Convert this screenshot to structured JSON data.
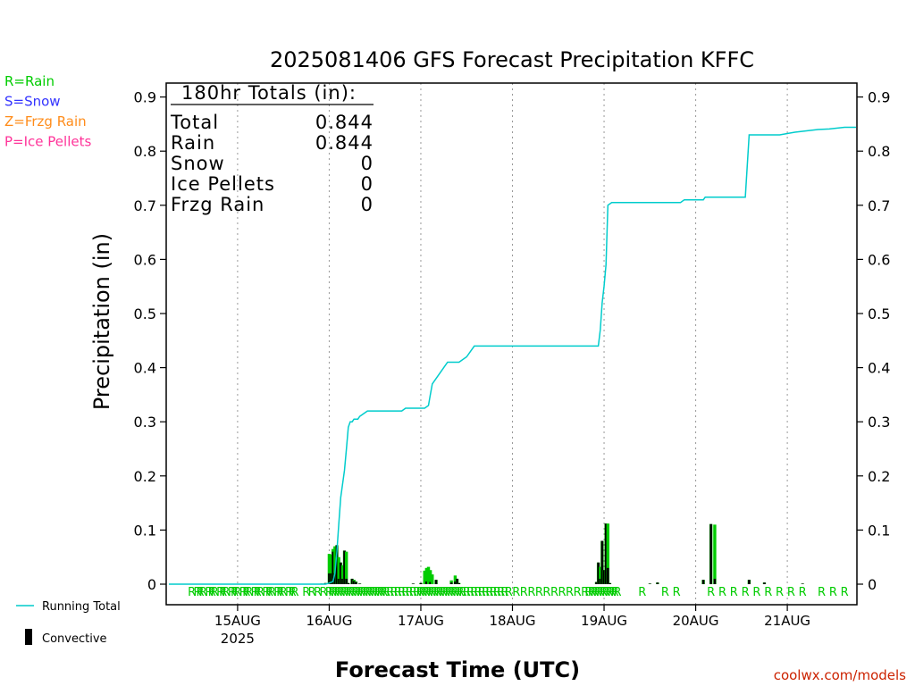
{
  "chart_data": {
    "type": "bar+line",
    "title": "2025081406 GFS Forecast Precipitation KFFC",
    "xlabel": "Forecast Time (UTC)",
    "ylabel": "Precipitation (in)",
    "ylim": [
      0,
      0.9
    ],
    "y_ticks": [
      "0",
      "0.1",
      "0.2",
      "0.3",
      "0.4",
      "0.5",
      "0.6",
      "0.7",
      "0.8",
      "0.9"
    ],
    "x_ticks": [
      {
        "hour": 18,
        "label": "15AUG",
        "sublabel": "2025"
      },
      {
        "hour": 42,
        "label": "16AUG"
      },
      {
        "hour": 66,
        "label": "17AUG"
      },
      {
        "hour": 90,
        "label": "18AUG"
      },
      {
        "hour": 114,
        "label": "19AUG"
      },
      {
        "hour": 138,
        "label": "20AUG"
      },
      {
        "hour": 162,
        "label": "21AUG"
      }
    ],
    "x_hour_range": [
      0,
      180
    ],
    "grid_x": true,
    "legend_left": [
      {
        "text": "R=Rain",
        "color": "#00cc00"
      },
      {
        "text": "S=Snow",
        "color": "#3333ff"
      },
      {
        "text": "Z=Frzg Rain",
        "color": "#ff8c1a"
      },
      {
        "text": "P=Ice Pellets",
        "color": "#ff3399"
      }
    ],
    "legend_bottom": [
      {
        "text": "Running Total",
        "color": "#00cccc",
        "kind": "line"
      },
      {
        "text": "Convective",
        "color": "#000000",
        "kind": "bar"
      }
    ],
    "totals": {
      "header": "180hr Totals (in):",
      "rows": [
        {
          "label": "Total",
          "value": "0.844"
        },
        {
          "label": "Rain",
          "value": "0.844"
        },
        {
          "label": "Snow",
          "value": "0"
        },
        {
          "label": "Ice Pellets",
          "value": "0"
        },
        {
          "label": "Frzg Rain",
          "value": "0"
        }
      ]
    },
    "running_total": {
      "color": "#00cccc",
      "hours": [
        0,
        41,
        42,
        43,
        43.5,
        44,
        44.5,
        45,
        46,
        46.5,
        47,
        47.5,
        48,
        48.5,
        49.5,
        50,
        51,
        52,
        53,
        58,
        61,
        62,
        64,
        66,
        67,
        68,
        68.5,
        69,
        70,
        72,
        73,
        74,
        74.5,
        76,
        78,
        80,
        90,
        106,
        112,
        112.5,
        113,
        113.5,
        114,
        114.5,
        115,
        116,
        122,
        134,
        135,
        138,
        140,
        140.5,
        141,
        142,
        151,
        152,
        153,
        154,
        160,
        164,
        170,
        173,
        177,
        180
      ],
      "values": [
        0,
        0,
        0.002,
        0.005,
        0.02,
        0.06,
        0.11,
        0.16,
        0.21,
        0.25,
        0.29,
        0.3,
        0.3,
        0.305,
        0.305,
        0.31,
        0.315,
        0.32,
        0.32,
        0.32,
        0.32,
        0.325,
        0.325,
        0.325,
        0.325,
        0.33,
        0.35,
        0.37,
        0.38,
        0.4,
        0.41,
        0.41,
        0.41,
        0.41,
        0.42,
        0.44,
        0.44,
        0.44,
        0.44,
        0.44,
        0.47,
        0.52,
        0.55,
        0.59,
        0.7,
        0.705,
        0.705,
        0.705,
        0.71,
        0.71,
        0.71,
        0.715,
        0.715,
        0.715,
        0.715,
        0.83,
        0.83,
        0.83,
        0.83,
        0.835,
        0.84,
        0.841,
        0.844,
        0.844
      ]
    },
    "bars": {
      "hours": [
        40,
        41,
        42,
        42.5,
        43,
        43.5,
        44,
        44.5,
        45,
        45.5,
        46,
        46.5,
        47,
        48,
        48.5,
        49,
        50,
        64,
        66,
        67,
        67.5,
        68,
        68.5,
        69,
        70,
        74,
        75,
        75.5,
        76,
        112,
        112.5,
        113,
        113.5,
        114,
        114.5,
        115,
        115.5,
        126,
        128,
        140,
        142,
        143,
        152,
        156,
        166
      ],
      "values": [
        0.001,
        0.002,
        0.056,
        0.055,
        0.065,
        0.07,
        0.072,
        0.05,
        0.04,
        0.035,
        0.062,
        0.06,
        0.002,
        0.01,
        0.008,
        0.005,
        0.001,
        0.001,
        0.002,
        0.025,
        0.03,
        0.032,
        0.026,
        0.018,
        0.008,
        0.007,
        0.016,
        0.01,
        0.002,
        0.004,
        0.04,
        0.032,
        0.08,
        0.026,
        0.112,
        0.112,
        0.002,
        0.001,
        0.003,
        0.008,
        0.111,
        0.11,
        0.008,
        0.003,
        0.001
      ],
      "convective": [
        0.001,
        0.002,
        0.02,
        0.02,
        0.06,
        0.02,
        0.072,
        0.01,
        0.04,
        0.01,
        0.062,
        0.01,
        0.002,
        0.01,
        0.006,
        0.004,
        0.001,
        0.001,
        0.002,
        0,
        0.005,
        0,
        0.004,
        0,
        0.008,
        0.003,
        0.005,
        0.01,
        0.002,
        0.004,
        0.04,
        0.01,
        0.08,
        0.026,
        0.112,
        0.03,
        0.002,
        0.001,
        0.003,
        0.008,
        0.111,
        0.01,
        0.008,
        0.003,
        0.001
      ]
    },
    "ptype_markers": {
      "letter": "R",
      "color": "#00cc00",
      "hours": [
        6,
        7.5,
        9,
        10.5,
        12,
        13.5,
        15,
        16.5,
        18,
        19.5,
        21,
        22.5,
        24,
        25.5,
        27,
        28.5,
        30,
        31.5,
        33,
        37.5,
        40.5,
        43.5,
        45,
        46.5,
        48,
        49.5,
        51,
        52.5,
        54,
        55.5,
        57,
        59,
        61,
        63,
        65,
        66.5,
        68,
        69.5,
        71,
        72.5,
        74,
        75.5,
        77,
        79,
        81,
        83,
        85,
        87,
        89,
        91,
        93,
        95,
        97,
        99,
        101,
        103,
        105,
        107,
        110,
        111.5,
        113,
        114.5,
        116,
        117.5,
        124,
        130,
        133,
        142,
        145,
        148,
        151,
        154,
        157,
        160,
        163,
        166,
        171,
        174,
        177
      ],
      "extra_hours": [
        8.2,
        11.3,
        14.2,
        17.2,
        20.3,
        23.2,
        26.3,
        29.2,
        32.3,
        36,
        39,
        42,
        42.8,
        44.3,
        45.8,
        47.3,
        48.8,
        50.3,
        51.8,
        53.3,
        54.8,
        56.3,
        58,
        60,
        62,
        64,
        65.8,
        67.3,
        68.8,
        70.3,
        71.8,
        73.3,
        74.8,
        76.3,
        78,
        80,
        82,
        84,
        86,
        88,
        109,
        110.8,
        112.3,
        113.8,
        115.3,
        116.8
      ]
    }
  },
  "watermark": "coolwx.com/models"
}
